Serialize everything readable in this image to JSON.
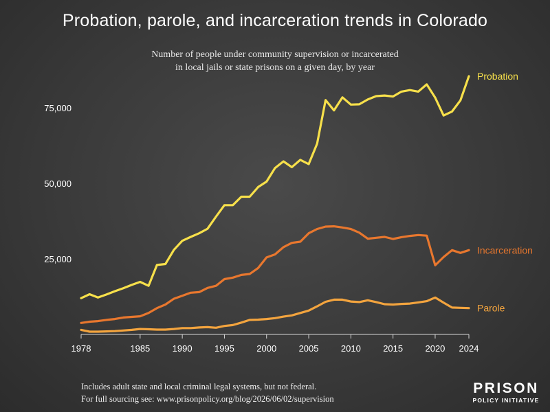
{
  "chart_data": {
    "type": "line",
    "title": "Probation, parole, and incarceration trends in Colorado",
    "subtitle_lines": [
      "Number of people under community supervision or incarcerated",
      "in local jails or state prisons on a given day, by year"
    ],
    "x_ticks": [
      "1978",
      "1985",
      "1990",
      "1995",
      "2000",
      "2005",
      "2010",
      "2015",
      "2020",
      "2024"
    ],
    "y_ticks": [
      "25,000",
      "50,000",
      "75,000"
    ],
    "xlim": [
      1978,
      2024
    ],
    "ylim": [
      0,
      90000
    ],
    "grid": false,
    "series": [
      {
        "name": "Probation",
        "color": "#f7e04b",
        "x": [
          1978,
          1979,
          1980,
          1981,
          1982,
          1983,
          1984,
          1985,
          1986,
          1987,
          1988,
          1989,
          1990,
          1991,
          1992,
          1993,
          1994,
          1995,
          1996,
          1997,
          1998,
          1999,
          2000,
          2001,
          2002,
          2003,
          2004,
          2005,
          2006,
          2007,
          2008,
          2009,
          2010,
          2011,
          2012,
          2013,
          2014,
          2015,
          2016,
          2017,
          2018,
          2019,
          2020,
          2021,
          2022,
          2023,
          2024
        ],
        "values": [
          12000,
          13300,
          12200,
          13200,
          14300,
          15300,
          16400,
          17400,
          16100,
          23000,
          23300,
          28000,
          31000,
          32300,
          33500,
          35000,
          39000,
          42800,
          42800,
          45600,
          45600,
          48800,
          50600,
          55100,
          57300,
          55400,
          57800,
          56400,
          63200,
          77600,
          74200,
          78500,
          76100,
          76200,
          77800,
          78900,
          79100,
          78800,
          80400,
          80900,
          80400,
          82800,
          78400,
          72500,
          73800,
          77500,
          85500
        ]
      },
      {
        "name": "Incarceration",
        "color": "#e8772e",
        "x": [
          1978,
          1979,
          1980,
          1981,
          1982,
          1983,
          1984,
          1985,
          1986,
          1987,
          1988,
          1989,
          1990,
          1991,
          1992,
          1993,
          1994,
          1995,
          1996,
          1997,
          1998,
          1999,
          2000,
          2001,
          2002,
          2003,
          2004,
          2005,
          2006,
          2007,
          2008,
          2009,
          2010,
          2011,
          2012,
          2013,
          2014,
          2015,
          2016,
          2017,
          2018,
          2019,
          2020,
          2021,
          2022,
          2023,
          2024
        ],
        "values": [
          3800,
          4200,
          4400,
          4800,
          5100,
          5600,
          5800,
          6000,
          7100,
          8700,
          9900,
          11800,
          12800,
          13800,
          14000,
          15400,
          16100,
          18300,
          18800,
          19700,
          20000,
          22000,
          25500,
          26500,
          28900,
          30300,
          30700,
          33500,
          34900,
          35700,
          35800,
          35400,
          34900,
          33700,
          31700,
          32000,
          32300,
          31600,
          32200,
          32600,
          32900,
          32700,
          22900,
          25600,
          27900,
          27000,
          27900
        ]
      },
      {
        "name": "Parole",
        "color": "#f3a43e",
        "x": [
          1978,
          1979,
          1980,
          1981,
          1982,
          1983,
          1984,
          1985,
          1986,
          1987,
          1988,
          1989,
          1990,
          1991,
          1992,
          1993,
          1994,
          1995,
          1996,
          1997,
          1998,
          1999,
          2000,
          2001,
          2002,
          2003,
          2004,
          2005,
          2006,
          2007,
          2008,
          2009,
          2010,
          2011,
          2012,
          2013,
          2014,
          2015,
          2016,
          2017,
          2018,
          2019,
          2020,
          2021,
          2022,
          2023,
          2024
        ],
        "values": [
          1500,
          900,
          900,
          1000,
          1100,
          1300,
          1500,
          1800,
          1700,
          1600,
          1600,
          1800,
          2100,
          2100,
          2300,
          2400,
          2200,
          2800,
          3100,
          3900,
          4800,
          4900,
          5100,
          5400,
          5900,
          6300,
          7100,
          7900,
          9300,
          10800,
          11500,
          11500,
          10900,
          10700,
          11300,
          10700,
          10000,
          9900,
          10100,
          10200,
          10600,
          11000,
          12200,
          10500,
          8900,
          8800,
          8700
        ]
      }
    ]
  },
  "footer": {
    "line1": "Includes adult state and local criminal legal systems, but not federal.",
    "line2": "For full sourcing see: www.prisonpolicy.org/blog/2026/06/02/supervision"
  },
  "logo": {
    "line1": "PRISON",
    "line2": "POLICY INITIATIVE"
  }
}
